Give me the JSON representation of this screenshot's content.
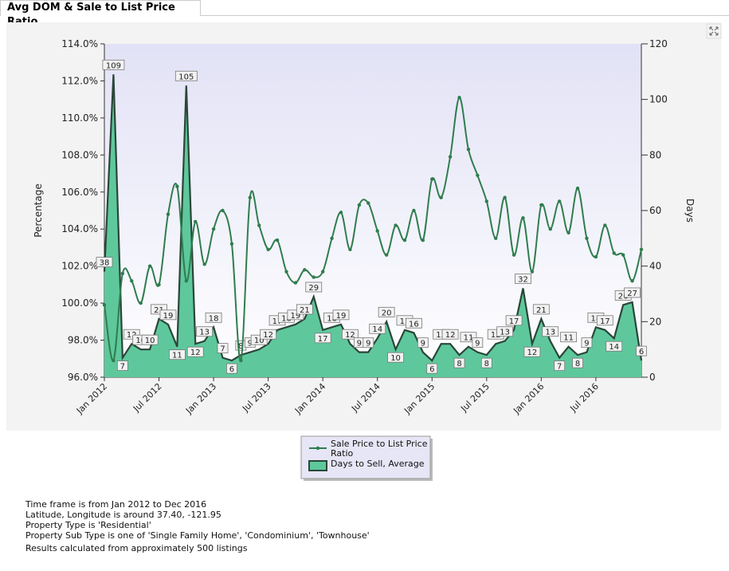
{
  "tab_title": "Avg DOM & Sale to List Price Ratio",
  "chart_data": {
    "type": "line-area",
    "ylabel": "Percentage",
    "y2label": "Days",
    "categories": [
      "Jan 2012",
      null,
      null,
      null,
      null,
      null,
      "Jul 2012",
      null,
      null,
      null,
      null,
      null,
      "Jan 2013",
      null,
      null,
      null,
      null,
      null,
      "Jul 2013",
      null,
      null,
      null,
      null,
      null,
      "Jan 2014",
      null,
      null,
      null,
      null,
      null,
      "Jul 2014",
      null,
      null,
      null,
      null,
      null,
      "Jan 2015",
      null,
      null,
      null,
      null,
      null,
      "Jul 2015",
      null,
      null,
      null,
      null,
      null,
      "Jan 2016",
      null,
      null,
      null,
      null,
      null,
      "Jul 2016",
      null,
      null,
      null,
      null,
      null
    ],
    "series": [
      {
        "name": "Sale Price to List Price Ratio",
        "type": "line",
        "color": "#2f7d4e",
        "axis": "y",
        "values": [
          99.9,
          96.9,
          101.6,
          101.2,
          100.0,
          102.0,
          101.0,
          104.8,
          106.3,
          101.2,
          104.4,
          102.1,
          104.0,
          105.0,
          103.2,
          96.9,
          105.7,
          104.2,
          102.9,
          103.4,
          101.7,
          101.1,
          101.8,
          101.4,
          101.7,
          103.5,
          104.9,
          102.9,
          105.3,
          105.4,
          103.9,
          102.6,
          104.2,
          103.4,
          105.0,
          103.4,
          106.7,
          105.7,
          107.9,
          111.1,
          108.3,
          106.9,
          105.5,
          103.5,
          105.7,
          102.6,
          104.6,
          101.7,
          105.3,
          104.0,
          105.5,
          103.8,
          106.2,
          103.5,
          102.5,
          104.2,
          102.7,
          102.6,
          101.2,
          102.9
        ]
      },
      {
        "name": "Days to Sell, Average",
        "type": "area",
        "color": "#5ec89c",
        "axis": "y2",
        "values": [
          38,
          109,
          7,
          12,
          10,
          10,
          21,
          19,
          11,
          105,
          12,
          13,
          18,
          7,
          6,
          8,
          9,
          10,
          12,
          17,
          18,
          19,
          21,
          29,
          17,
          18,
          19,
          12,
          9,
          9,
          14,
          20,
          10,
          17,
          16,
          9,
          6,
          12,
          12,
          8,
          11,
          9,
          8,
          12,
          13,
          17,
          32,
          12,
          21,
          13,
          7,
          11,
          8,
          9,
          18,
          17,
          14,
          26,
          27,
          6
        ]
      }
    ],
    "ylim": [
      96,
      114
    ],
    "yticks": [
      {
        "value": 96,
        "label": "96.0%"
      },
      {
        "value": 98,
        "label": "98.0%"
      },
      {
        "value": 100,
        "label": "100.0%"
      },
      {
        "value": 102,
        "label": "102.0%"
      },
      {
        "value": 104,
        "label": "104.0%"
      },
      {
        "value": 106,
        "label": "106.0%"
      },
      {
        "value": 108,
        "label": "108.0%"
      },
      {
        "value": 110,
        "label": "110.0%"
      },
      {
        "value": 112,
        "label": "112.0%"
      },
      {
        "value": 114,
        "label": "114.0%"
      }
    ],
    "y2lim": [
      0,
      120
    ],
    "y2ticks": [
      0,
      20,
      40,
      60,
      80,
      100,
      120
    ],
    "grid": false,
    "legend": "bottom"
  },
  "footer_lines": [
    "Time frame is from Jan 2012 to Dec 2016",
    "Latitude, Longitude is around 37.40, -121.95",
    "Property Type is 'Residential'",
    "Property Sub Type is one of 'Single Family Home', 'Condominium', 'Townhouse'",
    "Results calculated from approximately 500 listings"
  ]
}
